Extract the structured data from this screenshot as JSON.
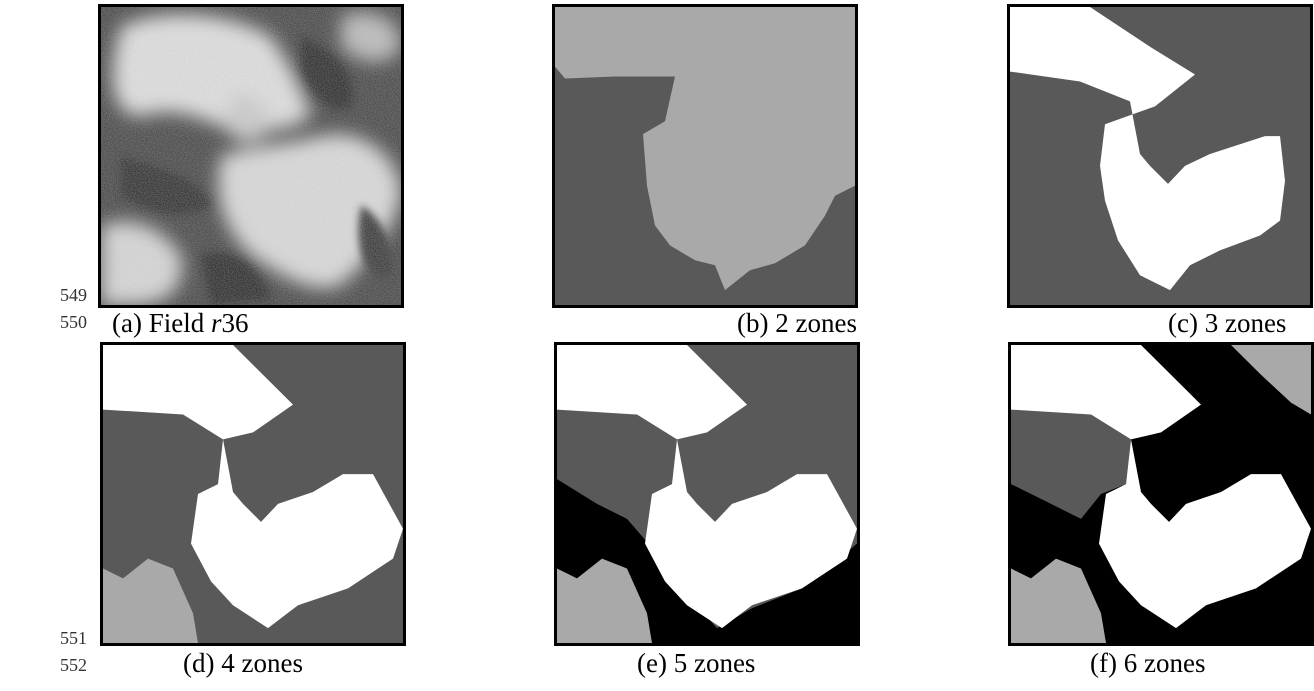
{
  "line_numbers": [
    "549",
    "550",
    "551",
    "552"
  ],
  "zone_colors": {
    "white": "#ffffff",
    "light_gray": "#a9a9a9",
    "dark_gray": "#595959",
    "black": "#000000"
  },
  "panels": [
    {
      "id": "a",
      "caption_prefix": "(a) Field ",
      "caption_italic": "r",
      "caption_suffix": "36",
      "zones": null
    },
    {
      "id": "b",
      "caption": "(b) 2 zones",
      "zones": 2
    },
    {
      "id": "c",
      "caption": "(c) 3 zones",
      "zones": 3
    },
    {
      "id": "d",
      "caption": "(d) 4 zones",
      "zones": 4
    },
    {
      "id": "e",
      "caption": "(e) 5 zones",
      "zones": 5
    },
    {
      "id": "f",
      "caption": "(f) 6 zones",
      "zones": 6
    }
  ]
}
